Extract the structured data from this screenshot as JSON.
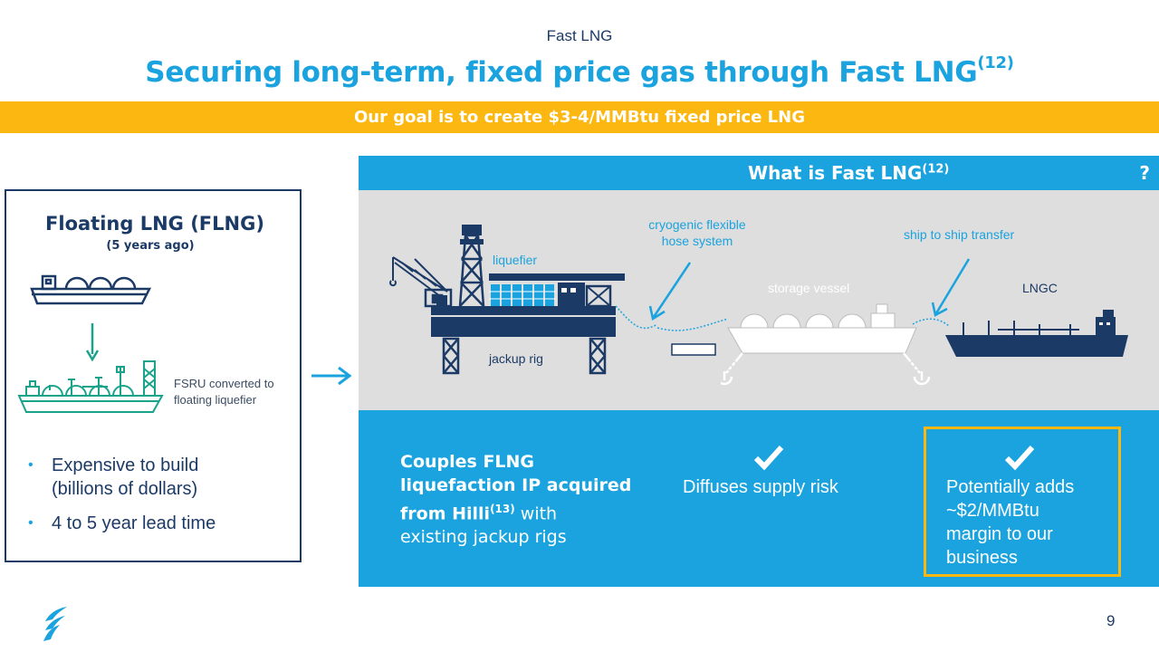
{
  "header": {
    "subject": "Fast LNG",
    "title": "Securing long-term, fixed price gas through Fast LNG",
    "title_sup": "(12)"
  },
  "goal_bar": {
    "text": "Our goal is to create $3-4/MMBtu fixed price LNG"
  },
  "left_panel": {
    "title": "Floating LNG (FLNG)",
    "subtitle": "(5 years ago)",
    "fsru_label_line1": "FSRU converted to",
    "fsru_label_line2": "floating liquefier",
    "bullets": [
      "Expensive to build",
      "(billions of dollars)",
      "4 to 5 year lead time"
    ]
  },
  "fast_lng": {
    "header": "What is Fast LNG",
    "header_sup": "(12)",
    "header_suffix": "?",
    "diagram_labels": {
      "liquefier": "liquefier",
      "jackup_rig": "jackup rig",
      "cryogenic_line1": "cryogenic flexible",
      "cryogenic_line2": "hose system",
      "storage_vessel": "storage vessel",
      "ship_transfer": "ship to ship transfer",
      "lngc": "LNGC"
    }
  },
  "benefits": {
    "couples_bold1": "Couples FLNG",
    "couples_bold2": "liquefaction IP acquired",
    "couples_bold3": "from Hilli",
    "couples_sup": "(13)",
    "couples_rest1": " with",
    "couples_rest2": "existing jackup rigs",
    "diffuses": "Diffuses supply risk",
    "adds_line1": "Potentially adds",
    "adds_line2": "~$2/MMBtu",
    "adds_line3": "margin to our",
    "adds_line4": "business"
  },
  "footer": {
    "page_number": "9"
  },
  "colors": {
    "accent_blue": "#1aa3de",
    "navy": "#1c3a66",
    "gold": "#fcb711",
    "teal": "#1aa38b",
    "diagram_bg": "#dedede"
  },
  "icons": [
    "arrow-right-icon",
    "checkmark-icon",
    "company-logo-icon",
    "cargo-ship-icon",
    "fsru-vessel-icon"
  ]
}
